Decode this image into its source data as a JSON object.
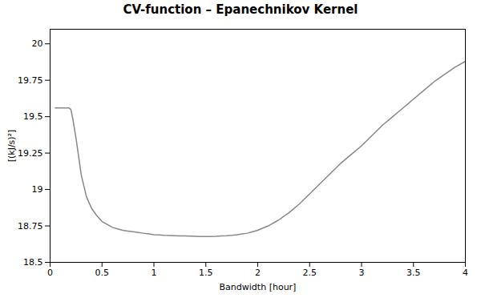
{
  "chart_data": {
    "type": "line",
    "title": "CV-function – Epanechnikov Kernel",
    "xlabel": "Bandwidth [hour]",
    "ylabel": "[(kJ/s)²]",
    "x": [
      0.05,
      0.1,
      0.15,
      0.18,
      0.2,
      0.22,
      0.25,
      0.28,
      0.3,
      0.35,
      0.4,
      0.45,
      0.5,
      0.55,
      0.6,
      0.65,
      0.7,
      0.75,
      0.8,
      0.85,
      0.9,
      0.95,
      1.0,
      1.05,
      1.1,
      1.15,
      1.2,
      1.25,
      1.3,
      1.35,
      1.4,
      1.45,
      1.5,
      1.55,
      1.6,
      1.65,
      1.7,
      1.75,
      1.8,
      1.85,
      1.9,
      1.95,
      2.0,
      2.1,
      2.2,
      2.3,
      2.4,
      2.5,
      2.6,
      2.7,
      2.8,
      2.9,
      3.0,
      3.1,
      3.2,
      3.3,
      3.4,
      3.5,
      3.6,
      3.7,
      3.8,
      3.9,
      4.0
    ],
    "values": [
      19.56,
      19.56,
      19.56,
      19.56,
      19.55,
      19.48,
      19.35,
      19.2,
      19.1,
      18.95,
      18.87,
      18.82,
      18.78,
      18.76,
      18.74,
      18.73,
      18.72,
      18.715,
      18.71,
      18.705,
      18.7,
      18.695,
      18.69,
      18.688,
      18.685,
      18.684,
      18.683,
      18.682,
      18.681,
      18.68,
      18.679,
      18.678,
      18.677,
      18.678,
      18.679,
      18.681,
      18.683,
      18.686,
      18.69,
      18.695,
      18.7,
      18.71,
      18.72,
      18.75,
      18.79,
      18.84,
      18.9,
      18.97,
      19.04,
      19.11,
      19.18,
      19.24,
      19.3,
      19.37,
      19.44,
      19.5,
      19.56,
      19.62,
      19.68,
      19.74,
      19.79,
      19.84,
      19.88
    ],
    "color": "#888888",
    "xlim": [
      0,
      4
    ],
    "ylim": [
      18.5,
      20.1
    ],
    "xticks": [
      0,
      0.5,
      1,
      1.5,
      2,
      2.5,
      3,
      3.5,
      4
    ],
    "yticks": [
      18.5,
      18.75,
      19,
      19.25,
      19.5,
      19.75,
      20
    ]
  }
}
